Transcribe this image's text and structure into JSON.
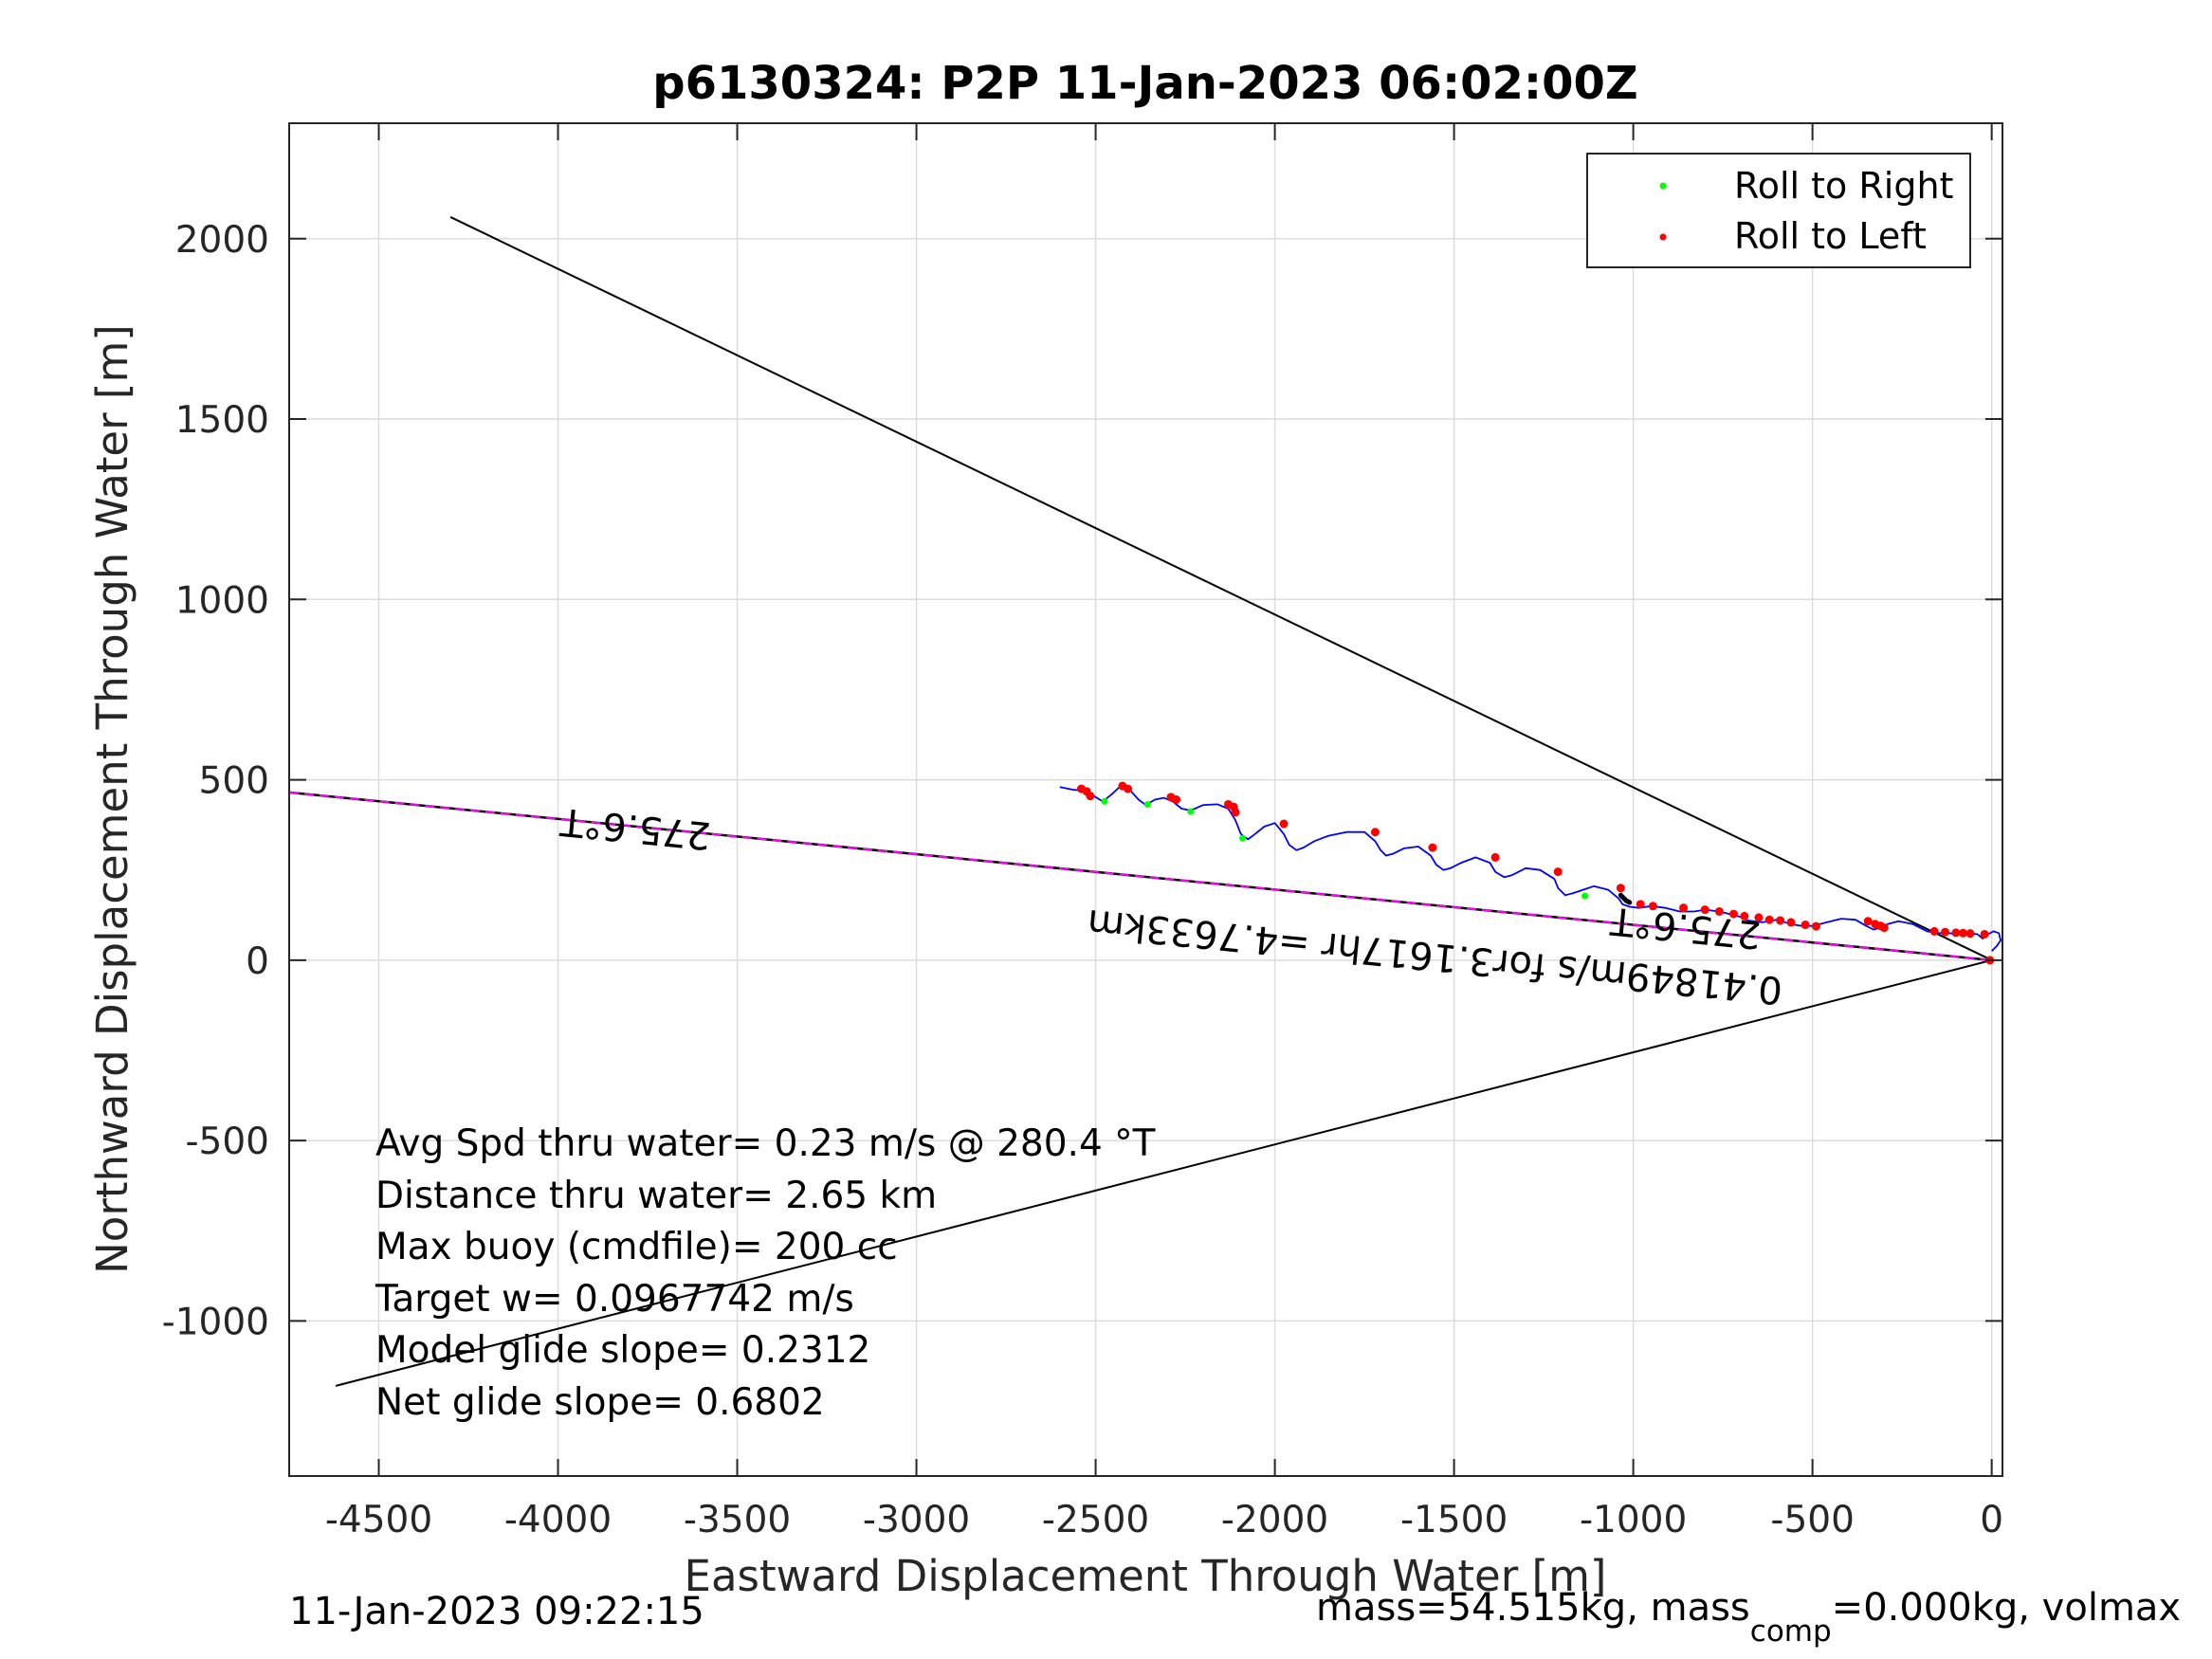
{
  "chart_data": {
    "type": "line",
    "title": "p6130324: P2P 11-Jan-2023 06:02:00Z",
    "xlabel": "Eastward Displacement Through Water [m]",
    "ylabel": "Northward Displacement Through Water [m]",
    "xlim": [
      -4750,
      30
    ],
    "ylim": [
      -1430,
      2320
    ],
    "xticks": [
      -4500,
      -4000,
      -3500,
      -3000,
      -2500,
      -2000,
      -1500,
      -1000,
      -500,
      0
    ],
    "yticks": [
      -1000,
      -500,
      0,
      500,
      1000,
      1500,
      2000
    ],
    "grid": true,
    "legend": {
      "placement": "top-right",
      "entries": [
        {
          "name": "Roll to Right",
          "color": "#00ff00"
        },
        {
          "name": "Roll to Left",
          "color": "#ff0000"
        }
      ]
    },
    "colors": {
      "track": "#0000ff",
      "heading_line": "#ff00ff",
      "guide_lines": "#000000",
      "grid": "#dcdcdc"
    },
    "guide_lines": [
      {
        "x": [
          -4300,
          0
        ],
        "y": [
          2060,
          0
        ]
      },
      {
        "x": [
          -4620,
          0
        ],
        "y": [
          -1180,
          0
        ]
      }
    ],
    "heading_line": {
      "x": [
        -4750,
        0
      ],
      "y": [
        465,
        0
      ]
    },
    "track": {
      "x": [
        -2600,
        -2560,
        -2530,
        -2505,
        -2480,
        -2455,
        -2430,
        -2405,
        -2380,
        -2360,
        -2335,
        -2310,
        -2285,
        -2260,
        -2235,
        -2200,
        -2160,
        -2130,
        -2110,
        -2095,
        -2075,
        -2055,
        -2030,
        -2000,
        -1975,
        -1960,
        -1940,
        -1920,
        -1890,
        -1850,
        -1800,
        -1750,
        -1720,
        -1705,
        -1690,
        -1670,
        -1640,
        -1600,
        -1565,
        -1550,
        -1530,
        -1510,
        -1480,
        -1440,
        -1400,
        -1385,
        -1360,
        -1340,
        -1300,
        -1260,
        -1220,
        -1210,
        -1190,
        -1170,
        -1140,
        -1110,
        -1070,
        -1040,
        -1030,
        -1010,
        -985,
        -950,
        -910,
        -870,
        -830,
        -800,
        -760,
        -720,
        -700,
        -680,
        -640,
        -600,
        -560,
        -530,
        -500,
        -460,
        -420,
        -380,
        -350,
        -330,
        -310,
        -290,
        -260,
        -220,
        -180,
        -150,
        -120,
        -90,
        -60,
        -40,
        -25,
        -10,
        5,
        20,
        25,
        15,
        0
      ],
      "y": [
        480,
        472,
        470,
        455,
        440,
        460,
        483,
        472,
        445,
        430,
        445,
        450,
        440,
        420,
        415,
        430,
        432,
        420,
        388,
        350,
        335,
        350,
        370,
        380,
        350,
        320,
        305,
        312,
        330,
        345,
        355,
        355,
        330,
        305,
        290,
        295,
        310,
        315,
        290,
        265,
        250,
        255,
        270,
        285,
        270,
        245,
        230,
        235,
        255,
        250,
        225,
        200,
        180,
        185,
        195,
        205,
        195,
        170,
        155,
        148,
        145,
        150,
        145,
        135,
        135,
        140,
        135,
        125,
        120,
        110,
        105,
        112,
        100,
        95,
        95,
        105,
        115,
        112,
        95,
        85,
        90,
        100,
        108,
        100,
        80,
        75,
        75,
        72,
        74,
        72,
        60,
        72,
        80,
        75,
        55,
        40,
        25
      ]
    },
    "roll_right": {
      "x": [
        -2475,
        -2355,
        -2235,
        -2090,
        -1135
      ],
      "y": [
        440,
        432,
        412,
        338,
        178
      ]
    },
    "roll_left": {
      "x": [
        -2540,
        -2525,
        -2515,
        -2425,
        -2410,
        -2290,
        -2275,
        -2130,
        -2115,
        -2110,
        -1975,
        -1720,
        -1560,
        -1385,
        -1210,
        -1035,
        -980,
        -945,
        -860,
        -800,
        -760,
        -720,
        -690,
        -650,
        -620,
        -590,
        -560,
        -520,
        -490,
        -345,
        -325,
        -310,
        -300,
        -160,
        -130,
        -100,
        -80,
        -60,
        -20,
        -5
      ],
      "y": [
        475,
        468,
        455,
        483,
        475,
        452,
        445,
        432,
        425,
        410,
        378,
        355,
        312,
        285,
        245,
        200,
        155,
        150,
        145,
        140,
        135,
        128,
        122,
        118,
        112,
        110,
        105,
        98,
        94,
        108,
        100,
        95,
        90,
        80,
        78,
        76,
        75,
        74,
        72,
        0
      ]
    },
    "heading_marker": {
      "x": [
        -1035,
        -1020,
        -1010
      ],
      "y": [
        180,
        165,
        160
      ]
    },
    "annotations": [
      {
        "text": "275.6°T",
        "x": -3780,
        "y": 400,
        "angle": 185.6
      },
      {
        "text": "275.6°T",
        "x": -850,
        "y": 125,
        "angle": 185.6
      },
      {
        "text": "0.41849m/s for3.1617hr =4.7633km",
        "x": -1550,
        "y": 45,
        "angle": 185.6
      }
    ],
    "stats": [
      "Avg Spd thru water=  0.23 m/s @ 280.4 °T",
      "Distance thru water=  2.65 km",
      "Max buoy (cmdfile)= 200 cc",
      "Target w= 0.0967742 m/s",
      "Model glide slope= 0.2312",
      "Net glide slope= 0.6802"
    ]
  },
  "footer": {
    "timestamp": "11-Jan-2023 09:22:15",
    "mass_prefix": "mass=54.515kg, mass",
    "mass_sub": "comp",
    "mass_suffix": "=0.000kg, volmax"
  }
}
